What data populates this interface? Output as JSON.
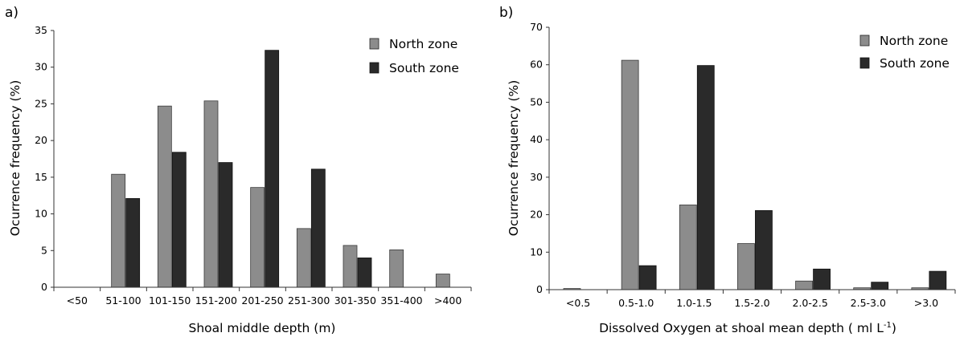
{
  "chart_data": [
    {
      "panel": "a)",
      "type": "bar",
      "categories": [
        "<50",
        "51-100",
        "101-150",
        "151-200",
        "201-250",
        "251-300",
        "301-350",
        "351-400",
        ">400"
      ],
      "series": [
        {
          "name": "North zone",
          "values": [
            0,
            15.4,
            24.7,
            25.4,
            13.6,
            8.0,
            5.7,
            5.1,
            1.8
          ],
          "color": "#8c8c8c"
        },
        {
          "name": "South zone",
          "values": [
            0,
            12.1,
            18.4,
            17.0,
            32.3,
            16.1,
            4.0,
            0,
            0
          ],
          "color": "#2a2a2a"
        }
      ],
      "xlabel": "Shoal middle depth (m)",
      "ylabel": "Ocurrence frequency (%)",
      "ylim": [
        0,
        35
      ],
      "yticks": [
        0,
        5,
        10,
        15,
        20,
        25,
        30,
        35
      ],
      "grid": false,
      "legend_position": "top-right"
    },
    {
      "panel": "b)",
      "type": "bar",
      "categories": [
        "<0.5",
        "0.5-1.0",
        "1.0-1.5",
        "1.5-2.0",
        "2.0-2.5",
        "2.5-3.0",
        ">3.0"
      ],
      "series": [
        {
          "name": "North zone",
          "values": [
            0.3,
            61.2,
            22.6,
            12.3,
            2.3,
            0.5,
            0.5
          ],
          "color": "#8c8c8c"
        },
        {
          "name": "South zone",
          "values": [
            0,
            6.4,
            59.8,
            21.1,
            5.5,
            2.0,
            4.9
          ],
          "color": "#2a2a2a"
        }
      ],
      "xlabel_main": "Dissolved Oxygen at shoal mean depth ( ml L",
      "xlabel_sup": "-1",
      "xlabel_end": ")",
      "ylabel": "Ocurrence frequency (%)",
      "ylim": [
        0,
        70
      ],
      "yticks": [
        0,
        10,
        20,
        30,
        40,
        50,
        60,
        70
      ],
      "grid": false,
      "legend_position": "top-right"
    }
  ]
}
